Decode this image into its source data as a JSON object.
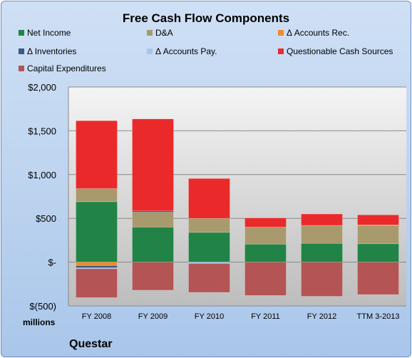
{
  "header": {
    "title": "Free Cash Flow Components"
  },
  "units_label": "millions",
  "company_label": "Questar",
  "chart_data": {
    "type": "bar",
    "stacked": true,
    "title": "Free Cash Flow Components",
    "xlabel": "",
    "ylabel": "",
    "ylim": [
      -500,
      2000
    ],
    "y_ticks": [
      -500,
      0,
      500,
      1000,
      1500,
      2000
    ],
    "y_tick_labels": [
      "$(500)",
      "$-",
      "$500",
      "$1,000",
      "$1,500",
      "$2,000"
    ],
    "grid": true,
    "legend_position": "top",
    "categories": [
      "FY 2008",
      "FY 2009",
      "FY 2010",
      "FY 2011",
      "FY 2012",
      "TTM 3-2013"
    ],
    "series": [
      {
        "name": "Net Income",
        "color": "#218446",
        "values": [
          690,
          400,
          340,
          205,
          215,
          210
        ]
      },
      {
        "name": "D&A",
        "color": "#a89a6c",
        "values": [
          150,
          170,
          160,
          195,
          205,
          210
        ]
      },
      {
        "name": "Δ Accounts Rec.",
        "color": "#f08a2e",
        "values": [
          -40,
          0,
          0,
          0,
          0,
          5
        ]
      },
      {
        "name": "Δ Inventories",
        "color": "#3c5a86",
        "values": [
          -25,
          15,
          0,
          0,
          0,
          0
        ]
      },
      {
        "name": "Δ Accounts Pay.",
        "color": "#a8c4ea",
        "values": [
          -10,
          0,
          -15,
          0,
          0,
          0
        ]
      },
      {
        "name": "Questionable Cash Sources",
        "color": "#ea2a2a",
        "values": [
          775,
          1050,
          455,
          105,
          130,
          115
        ]
      },
      {
        "name": "Capital Expenditures",
        "color": "#b45454",
        "values": [
          -330,
          -320,
          -330,
          -380,
          -390,
          -370
        ]
      }
    ]
  }
}
